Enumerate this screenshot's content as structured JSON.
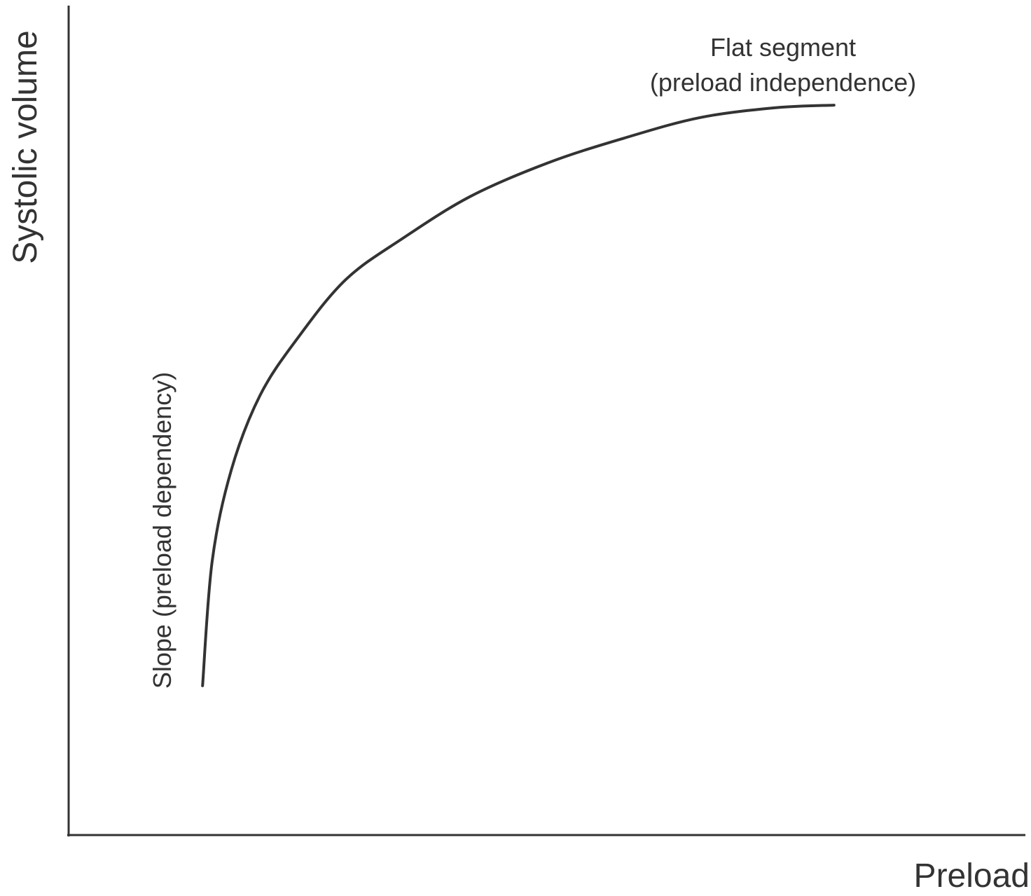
{
  "chart_data": {
    "type": "line",
    "title": "",
    "xlabel": "Preload",
    "ylabel": "Systolic volume",
    "xlim": [
      0,
      100
    ],
    "ylim": [
      0,
      100
    ],
    "grid": false,
    "ticks": false,
    "series": [
      {
        "x": [
          14,
          15,
          17,
          20,
          24,
          29,
          35,
          42,
          50,
          58,
          66,
          74,
          80
        ],
        "y": [
          18,
          33,
          44,
          53,
          60,
          67,
          72,
          77,
          81,
          84,
          86.5,
          87.7,
          88
        ],
        "color": "#333333"
      }
    ],
    "annotations": [
      {
        "kind": "flat",
        "lines": [
          "Flat segment",
          "(preload independence)"
        ]
      },
      {
        "kind": "slope",
        "text": "Slope (preload dependency)"
      }
    ]
  }
}
